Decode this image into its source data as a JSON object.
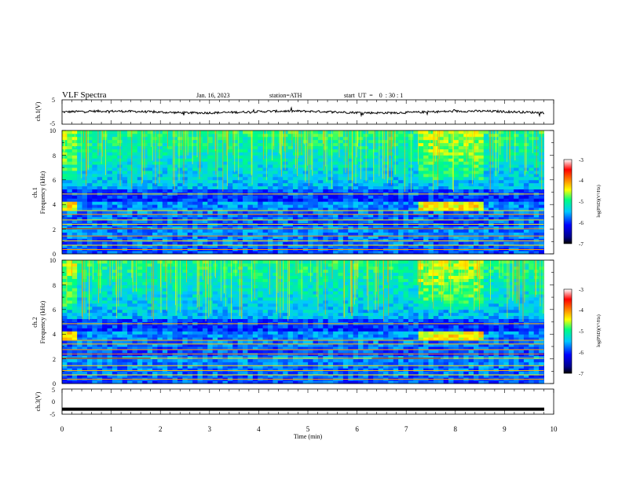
{
  "header": {
    "title": "VLF  Spectra",
    "date": "Jan. 16, 2023",
    "station": "station=ATH",
    "start": "start  UT  =    0  : 30 : 1"
  },
  "chart_data": [
    {
      "type": "line",
      "panel": "ch1-waveform",
      "ylabel": "ch.1(V)",
      "yticks": [
        "5",
        "-5"
      ],
      "ylim": [
        -5,
        5
      ],
      "xlim": [
        0,
        10
      ],
      "baseline_value": 0,
      "color": "#000000"
    },
    {
      "type": "heatmap",
      "panel": "ch1-spectrogram",
      "ylabel_line1": "ch.1",
      "ylabel_line2": "Frequency (kHz)",
      "yticks": [
        "0",
        "2",
        "4",
        "6",
        "8",
        "10"
      ],
      "ylim": [
        0,
        10
      ],
      "xlim": [
        0,
        10
      ],
      "colorbar": {
        "label": "log(PSD)(V²/Hz)",
        "ticks": [
          "-3",
          "-4",
          "-5",
          "-6",
          "-7"
        ],
        "range": [
          -7,
          -3
        ]
      }
    },
    {
      "type": "heatmap",
      "panel": "ch2-spectrogram",
      "ylabel_line1": "ch.2",
      "ylabel_line2": "Frequency (kHz)",
      "yticks": [
        "0",
        "2",
        "4",
        "6",
        "8",
        "10"
      ],
      "ylim": [
        0,
        10
      ],
      "xlim": [
        0,
        10
      ],
      "colorbar": {
        "label": "log(PSD)(V²/Hz)",
        "ticks": [
          "-3",
          "-4",
          "-5",
          "-6",
          "-7"
        ],
        "range": [
          -7,
          -3
        ]
      }
    },
    {
      "type": "line",
      "panel": "ch3-waveform",
      "ylabel": "ch.3(V)",
      "yticks": [
        "5",
        "0",
        "-5"
      ],
      "ylim": [
        -5,
        5
      ],
      "xlim": [
        0,
        10
      ],
      "baseline_value": -3,
      "color": "#000000"
    }
  ],
  "xaxis": {
    "label": "Time  (min)",
    "ticks": [
      "0",
      "1",
      "2",
      "3",
      "4",
      "5",
      "6",
      "7",
      "8",
      "9",
      "10"
    ]
  }
}
